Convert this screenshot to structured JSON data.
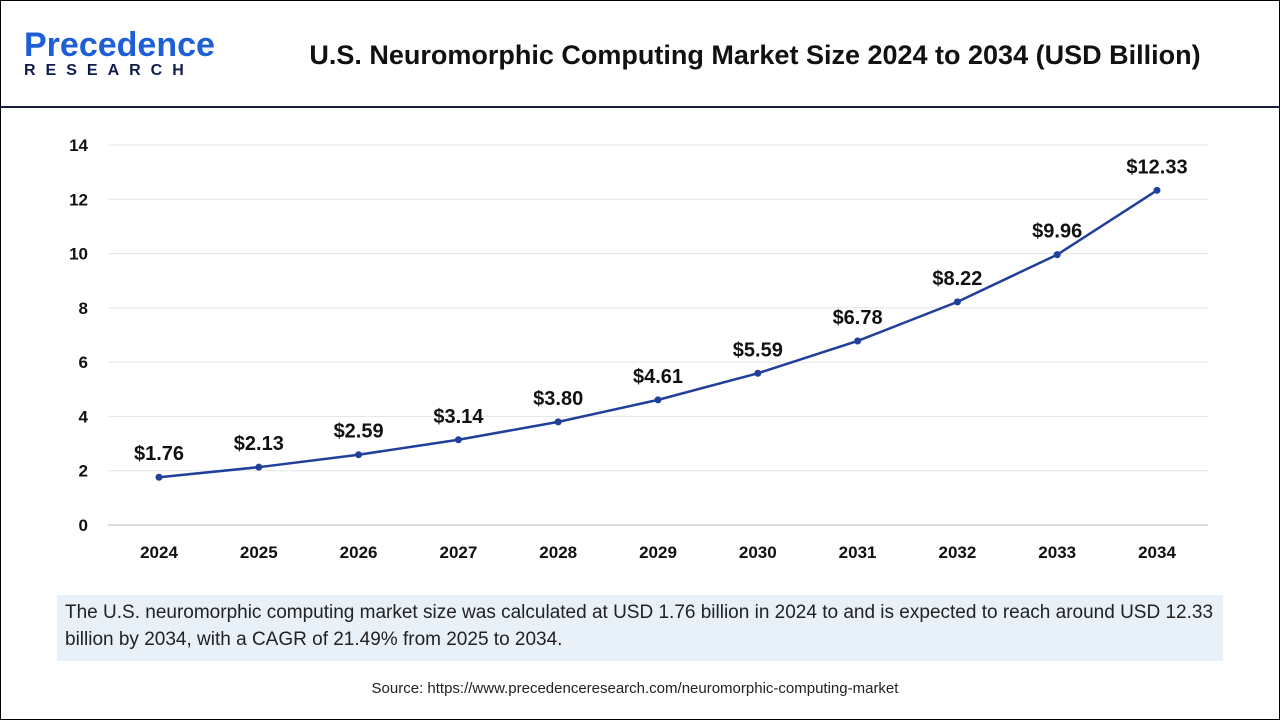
{
  "logo": {
    "text_main": "Precedence",
    "text_sub": "RESEARCH"
  },
  "title": "U.S. Neuromorphic Computing Market Size 2024 to 2034 (USD Billion)",
  "chart_data": {
    "type": "line",
    "title": "U.S. Neuromorphic Computing Market Size 2024 to 2034 (USD Billion)",
    "categories": [
      "2024",
      "2025",
      "2026",
      "2027",
      "2028",
      "2029",
      "2030",
      "2031",
      "2032",
      "2033",
      "2034"
    ],
    "values": [
      1.76,
      2.13,
      2.59,
      3.14,
      3.8,
      4.61,
      5.59,
      6.78,
      8.22,
      9.96,
      12.33
    ],
    "data_labels": [
      "$1.76",
      "$2.13",
      "$2.59",
      "$3.14",
      "$3.80",
      "$4.61",
      "$5.59",
      "$6.78",
      "$8.22",
      "$9.96",
      "$12.33"
    ],
    "yticks": [
      "0",
      "2",
      "4",
      "6",
      "8",
      "10",
      "12",
      "14"
    ],
    "ylim": [
      0,
      14
    ],
    "grid": true,
    "line_color": "#1f3f9a",
    "xlabel": "",
    "ylabel": ""
  },
  "note": "The U.S. neuromorphic computing market size was calculated at USD 1.76  billion in 2024 to and is expected to reach around USD 12.33 billion by 2034, with a CAGR of 21.49% from 2025 to 2034.",
  "source": "Source: https://www.precedenceresearch.com/neuromorphic-computing-market"
}
